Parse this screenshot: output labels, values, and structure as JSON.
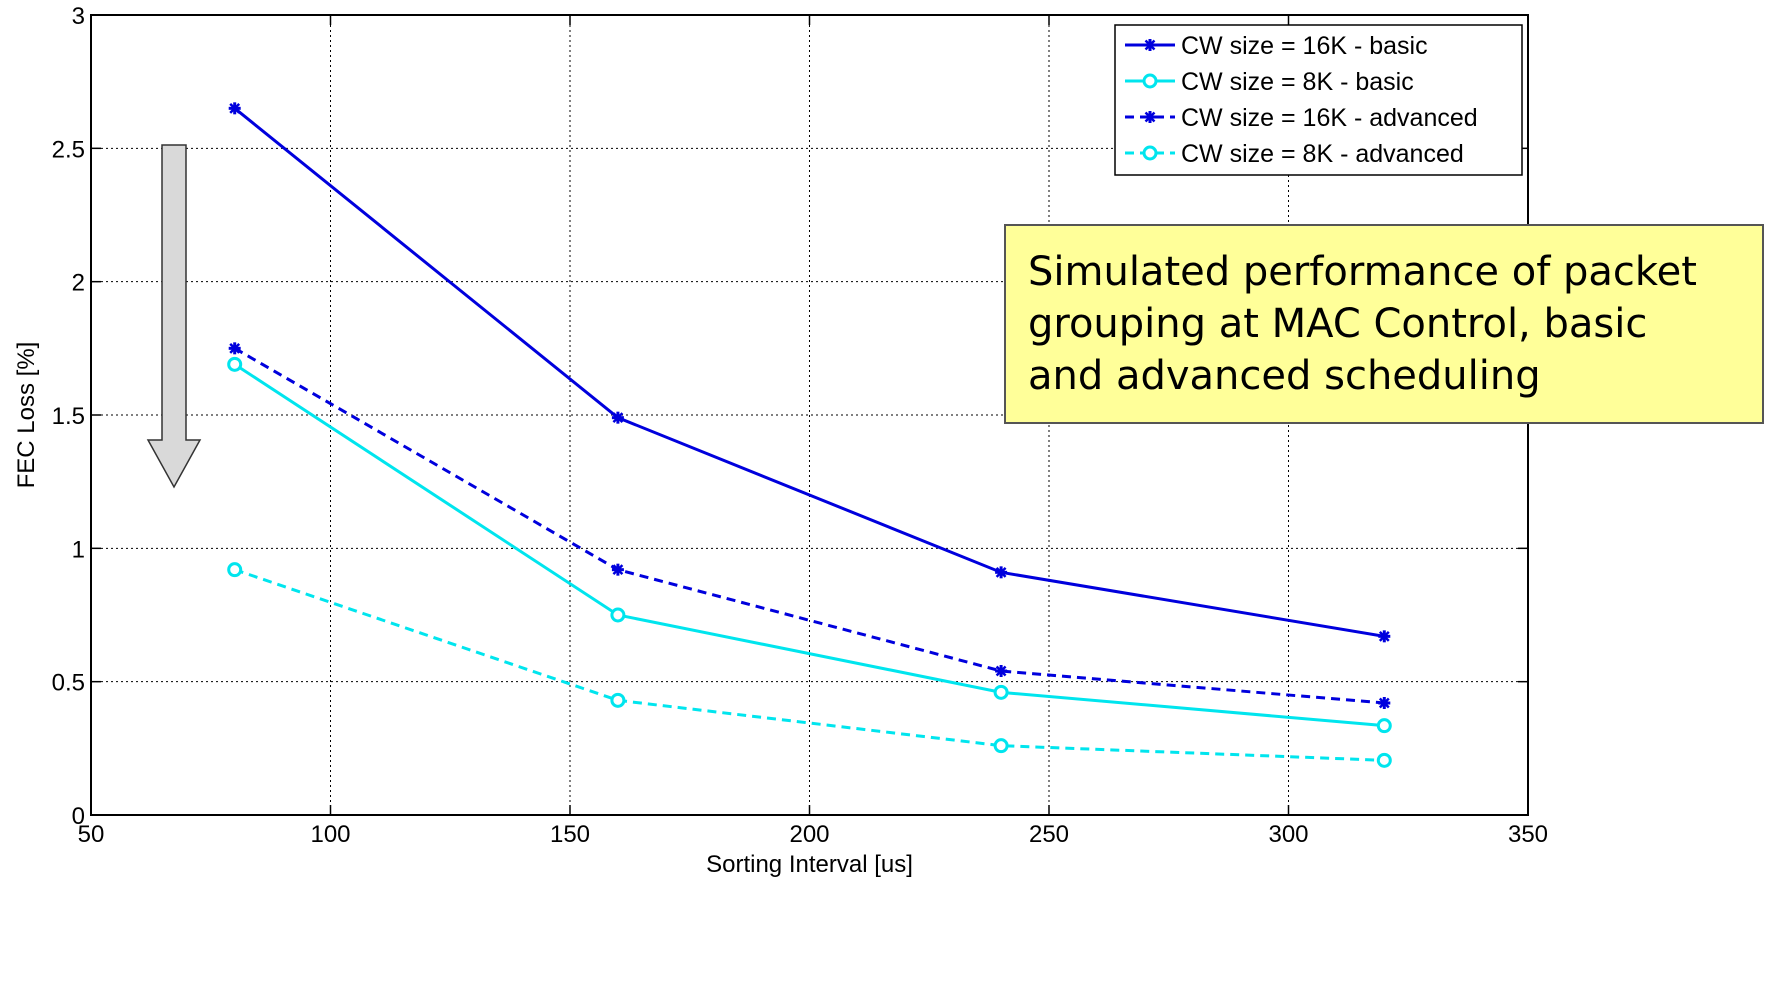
{
  "chart_data": {
    "type": "line",
    "title": "",
    "xlabel": "Sorting Interval [us]",
    "ylabel": "FEC Loss [%]",
    "xlim": [
      50,
      350
    ],
    "ylim": [
      0,
      3
    ],
    "xticks": [
      50,
      100,
      150,
      200,
      250,
      300,
      350
    ],
    "yticks": [
      0,
      0.5,
      1,
      1.5,
      2,
      2.5,
      3
    ],
    "grid": true,
    "legend_position": "top-right",
    "x": [
      80,
      160,
      240,
      320
    ],
    "series": [
      {
        "name": "CW size = 16K - basic",
        "values": [
          2.65,
          1.49,
          0.91,
          0.67
        ],
        "color": "#0000dd",
        "dashed": false,
        "marker": "star"
      },
      {
        "name": "CW size = 8K - basic",
        "values": [
          1.69,
          0.75,
          0.46,
          0.335
        ],
        "color": "#00e5ee",
        "dashed": false,
        "marker": "circle"
      },
      {
        "name": "CW size = 16K - advanced",
        "values": [
          1.75,
          0.92,
          0.54,
          0.42
        ],
        "color": "#0000dd",
        "dashed": true,
        "marker": "star"
      },
      {
        "name": "CW size = 8K - advanced",
        "values": [
          0.92,
          0.43,
          0.26,
          0.205
        ],
        "color": "#00e5ee",
        "dashed": true,
        "marker": "circle"
      }
    ],
    "annotation": {
      "lines": [
        "Simulated performance of packet",
        "grouping at MAC Control, basic",
        "and advanced scheduling"
      ],
      "background": "#ffff99"
    },
    "arrow": {
      "direction": "down",
      "color": "#d9d9d9"
    }
  }
}
